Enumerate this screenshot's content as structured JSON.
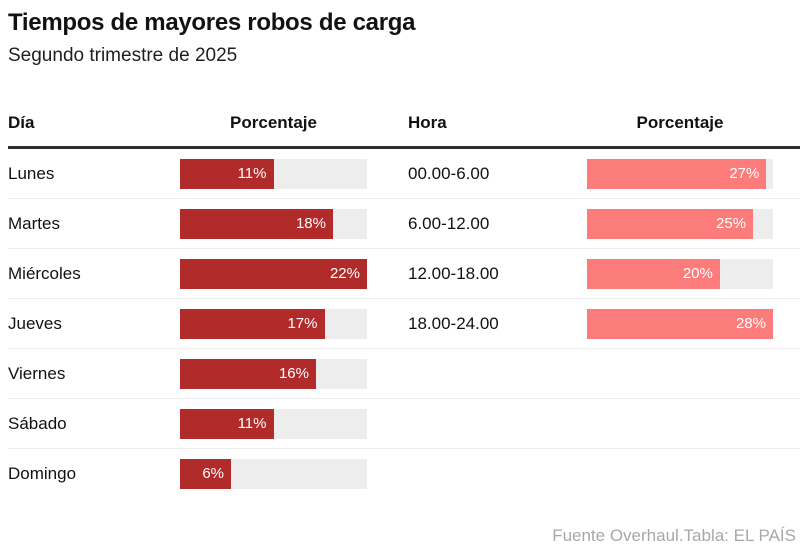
{
  "title": "Tiempos de mayores robos de carga",
  "subtitle": "Segundo trimestre de 2025",
  "source": "Fuente Overhaul.Tabla: EL PAÍS",
  "colors": {
    "day_bar": "#b22b2b",
    "hour_bar": "#fc7b7b",
    "bar_track": "#ededed",
    "value_text": "#ffffff",
    "header_rule": "#2d2d2d",
    "row_separator": "#ececec",
    "source_text": "#a8a8a8"
  },
  "chart_data": [
    {
      "type": "bar",
      "orientation": "horizontal",
      "title": "Día",
      "value_header": "Porcentaje",
      "unit": "%",
      "categories": [
        "Lunes",
        "Martes",
        "Miércoles",
        "Jueves",
        "Viernes",
        "Sábado",
        "Domingo"
      ],
      "values": [
        11,
        18,
        22,
        17,
        16,
        11,
        6
      ],
      "bars_scaled_to_max": 22,
      "value_labels": [
        "11%",
        "18%",
        "22%",
        "17%",
        "16%",
        "11%",
        "6%"
      ],
      "legend_position": "none",
      "grid": false
    },
    {
      "type": "bar",
      "orientation": "horizontal",
      "title": "Hora",
      "value_header": "Porcentaje",
      "unit": "%",
      "categories": [
        "00.00-6.00",
        "6.00-12.00",
        "12.00-18.00",
        "18.00-24.00"
      ],
      "values": [
        27,
        25,
        20,
        28
      ],
      "bars_scaled_to_max": 28,
      "value_labels": [
        "27%",
        "25%",
        "20%",
        "28%"
      ],
      "legend_position": "none",
      "grid": false
    }
  ]
}
